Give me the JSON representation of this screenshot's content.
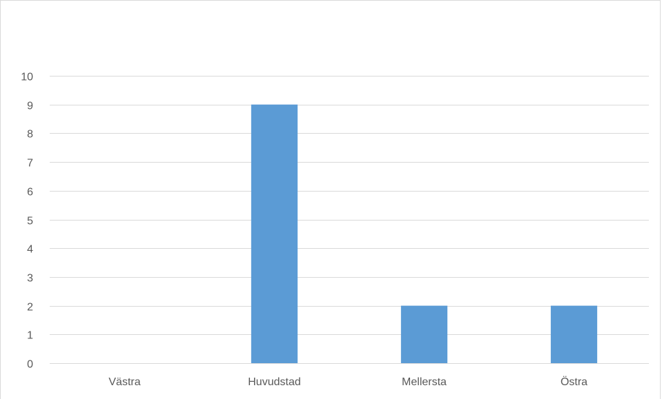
{
  "chart_data": {
    "type": "bar",
    "categories": [
      "Västra",
      "Huvudstad",
      "Mellersta",
      "Östra"
    ],
    "values": [
      0,
      9,
      2,
      2
    ],
    "title": "",
    "xlabel": "",
    "ylabel": "",
    "ylim": [
      0,
      10
    ],
    "yticks": [
      "0",
      "1",
      "2",
      "3",
      "4",
      "5",
      "6",
      "7",
      "8",
      "9",
      "10"
    ],
    "grid": true,
    "legend": "none",
    "colors": {
      "bar": "#5b9bd5",
      "gridline": "#d9d9d9",
      "text": "#595959"
    }
  }
}
